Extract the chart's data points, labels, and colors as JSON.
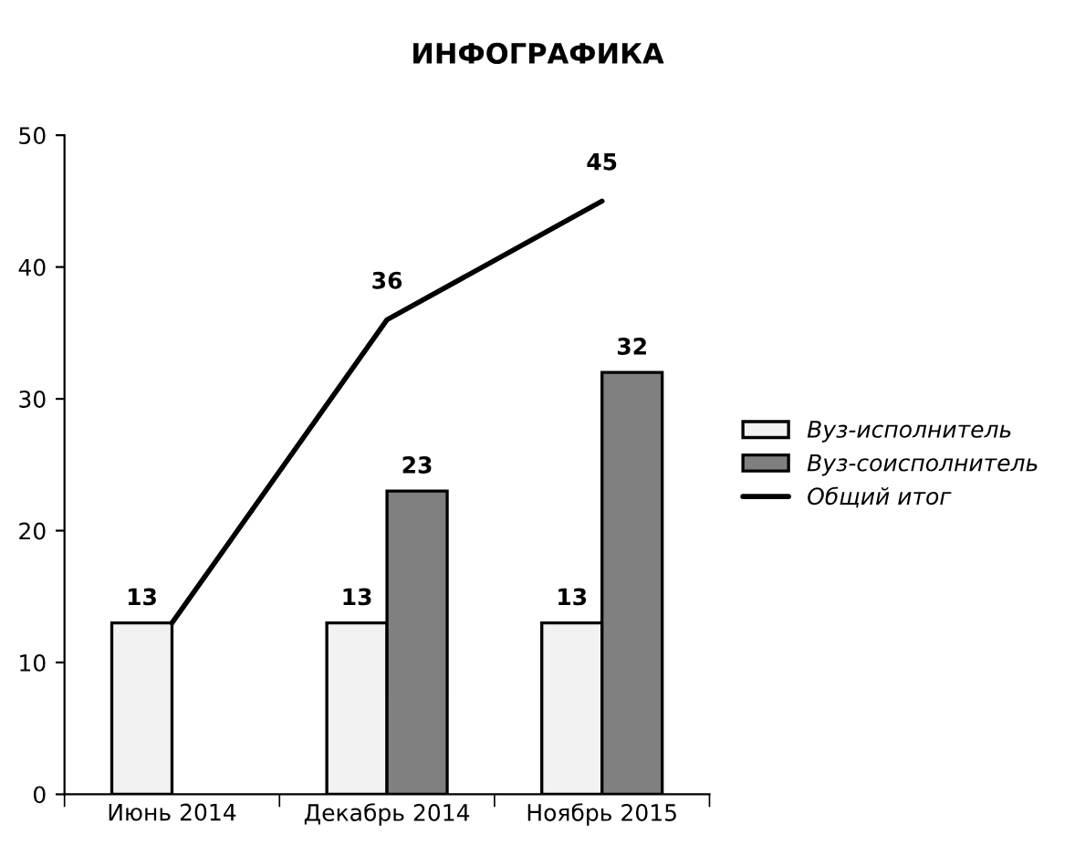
{
  "chart_data": {
    "type": "bar",
    "title": "ИНФОГРАФИКА",
    "categories": [
      "Июнь 2014",
      "Декабрь 2014",
      "Ноябрь 2015"
    ],
    "series": [
      {
        "name": "Вуз-исполнитель",
        "color": "#f2f2f2",
        "values": [
          13,
          13,
          13
        ]
      },
      {
        "name": "Вуз-соисполнитель",
        "color": "#808080",
        "values": [
          null,
          23,
          32
        ]
      },
      {
        "name": "Общий итог",
        "color": "#000000",
        "type": "line",
        "values": [
          13,
          36,
          45
        ],
        "value_labels": [
          null,
          "36",
          "45"
        ]
      }
    ],
    "ylim": [
      0,
      50
    ],
    "yticks": [
      0,
      10,
      20,
      30,
      40,
      50
    ],
    "grid": false,
    "legend": "right",
    "data_labels": true
  }
}
